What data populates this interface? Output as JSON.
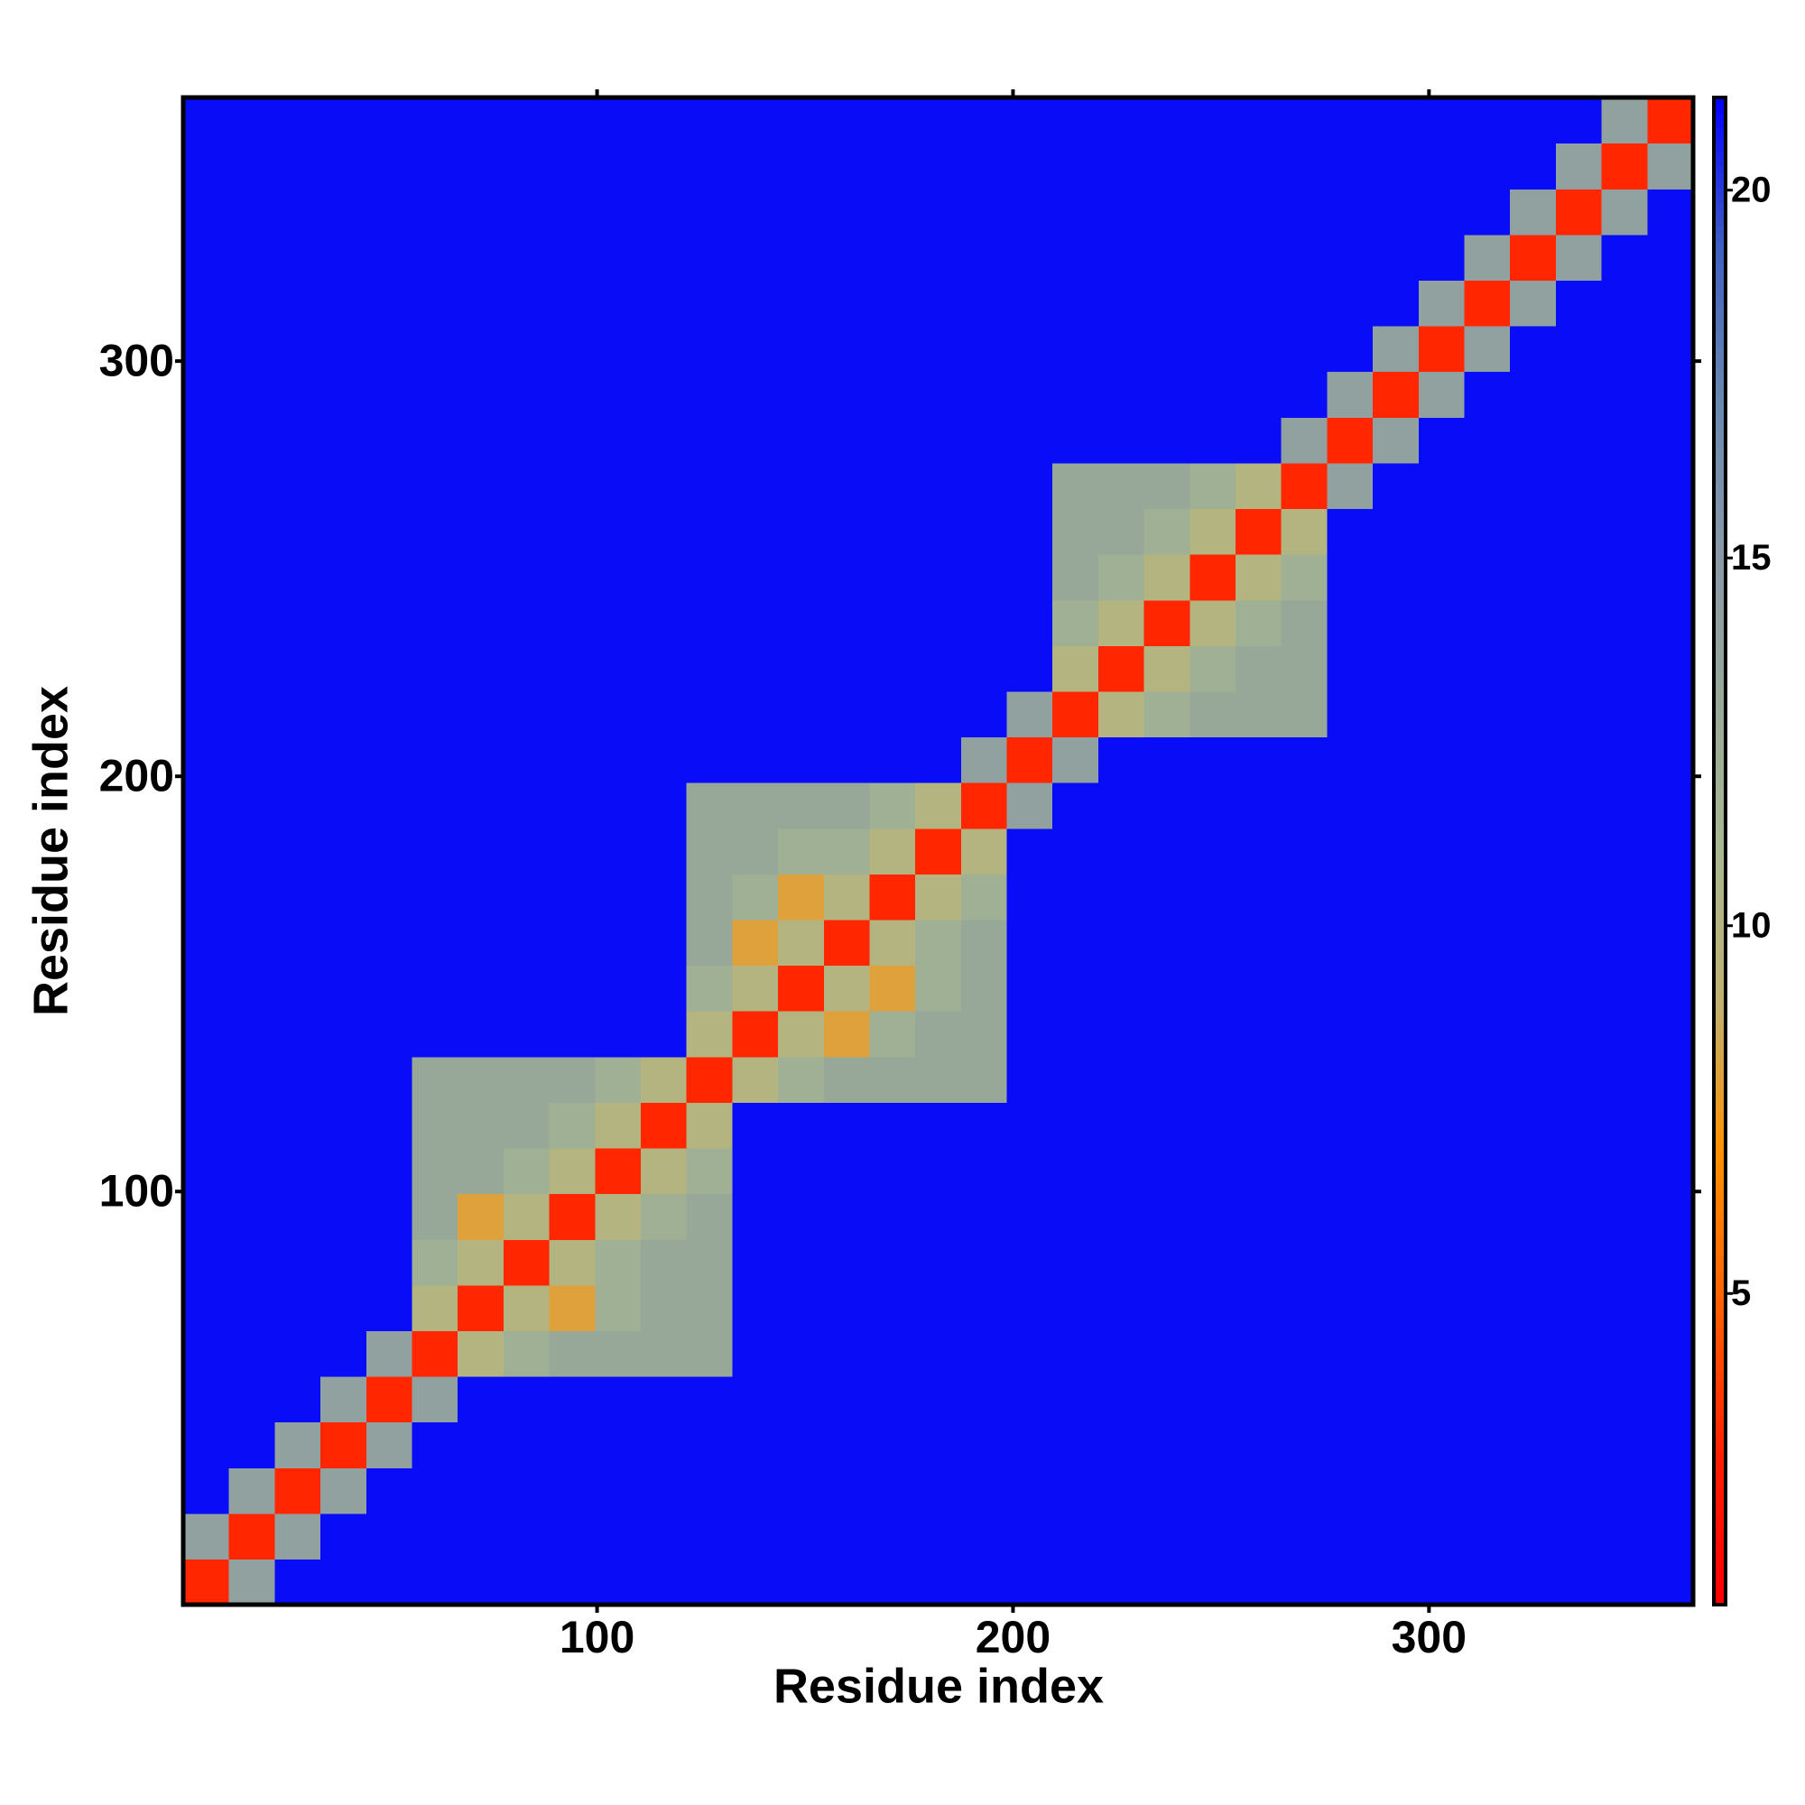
{
  "chart_data": {
    "type": "heatmap",
    "xlabel": "Residue index",
    "ylabel": "Residue index",
    "x": [
      0.5,
      11.5,
      22.5,
      33.5,
      44.5,
      55.5,
      66.5,
      77.5,
      88.5,
      99.5,
      110.5,
      121.5,
      132.5,
      143.5,
      154.5,
      165.5,
      176.5,
      187.5,
      198.5,
      209.5,
      220.5,
      231.5,
      242.5,
      253.5,
      264.5,
      275.5,
      286.5,
      297.5,
      308.5,
      319.5,
      330.5,
      341.5,
      352.5,
      363.5
    ],
    "y": [
      0.5,
      11.5,
      22.5,
      33.5,
      44.5,
      55.5,
      66.5,
      77.5,
      88.5,
      99.5,
      110.5,
      121.5,
      132.5,
      143.5,
      154.5,
      165.5,
      176.5,
      187.5,
      198.5,
      209.5,
      220.5,
      231.5,
      242.5,
      253.5,
      264.5,
      275.5,
      286.5,
      297.5,
      308.5,
      319.5,
      330.5,
      341.5,
      352.5,
      363.5
    ],
    "z": [
      [
        3,
        14,
        21,
        21,
        21,
        21,
        21,
        21,
        21,
        21,
        21,
        21,
        21,
        21,
        21,
        21,
        21,
        21,
        21,
        21,
        21,
        21,
        21,
        21,
        21,
        21,
        21,
        21,
        21,
        21,
        21,
        21,
        21
      ],
      [
        14,
        3,
        14,
        21,
        21,
        21,
        21,
        21,
        21,
        21,
        21,
        21,
        21,
        21,
        21,
        21,
        21,
        21,
        21,
        21,
        21,
        21,
        21,
        21,
        21,
        21,
        21,
        21,
        21,
        21,
        21,
        21,
        21
      ],
      [
        21,
        14,
        3,
        14,
        21,
        21,
        21,
        21,
        21,
        21,
        21,
        21,
        21,
        21,
        21,
        21,
        21,
        21,
        21,
        21,
        21,
        21,
        21,
        21,
        21,
        21,
        21,
        21,
        21,
        21,
        21,
        21,
        21
      ],
      [
        21,
        21,
        14,
        3,
        14,
        21,
        21,
        21,
        21,
        21,
        21,
        21,
        21,
        21,
        21,
        21,
        21,
        21,
        21,
        21,
        21,
        21,
        21,
        21,
        21,
        21,
        21,
        21,
        21,
        21,
        21,
        21,
        21
      ],
      [
        21,
        21,
        21,
        14,
        3,
        14,
        21,
        21,
        21,
        21,
        21,
        21,
        21,
        21,
        21,
        21,
        21,
        21,
        21,
        21,
        21,
        21,
        21,
        21,
        21,
        21,
        21,
        21,
        21,
        21,
        21,
        21,
        21
      ],
      [
        21,
        21,
        21,
        21,
        14,
        3,
        10,
        12,
        13,
        13,
        13,
        13,
        21,
        21,
        21,
        21,
        21,
        21,
        21,
        21,
        21,
        21,
        21,
        21,
        21,
        21,
        21,
        21,
        21,
        21,
        21,
        21,
        21
      ],
      [
        21,
        21,
        21,
        21,
        21,
        10,
        3,
        10,
        8,
        12,
        13,
        13,
        21,
        21,
        21,
        21,
        21,
        21,
        21,
        21,
        21,
        21,
        21,
        21,
        21,
        21,
        21,
        21,
        21,
        21,
        21,
        21,
        21
      ],
      [
        21,
        21,
        21,
        21,
        21,
        12,
        10,
        3,
        10,
        12,
        13,
        13,
        21,
        21,
        21,
        21,
        21,
        21,
        21,
        21,
        21,
        21,
        21,
        21,
        21,
        21,
        21,
        21,
        21,
        21,
        21,
        21,
        21
      ],
      [
        21,
        21,
        21,
        21,
        21,
        13,
        8,
        10,
        3,
        10,
        12,
        13,
        21,
        21,
        21,
        21,
        21,
        21,
        21,
        21,
        21,
        21,
        21,
        21,
        21,
        21,
        21,
        21,
        21,
        21,
        21,
        21,
        21
      ],
      [
        21,
        21,
        21,
        21,
        21,
        13,
        13,
        12,
        10,
        3,
        10,
        12,
        21,
        21,
        21,
        21,
        21,
        21,
        21,
        21,
        21,
        21,
        21,
        21,
        21,
        21,
        21,
        21,
        21,
        21,
        21,
        21,
        21
      ],
      [
        21,
        21,
        21,
        21,
        21,
        13,
        13,
        13,
        12,
        10,
        3,
        10,
        21,
        21,
        21,
        21,
        21,
        21,
        21,
        21,
        21,
        21,
        21,
        21,
        21,
        21,
        21,
        21,
        21,
        21,
        21,
        21,
        21
      ],
      [
        21,
        21,
        21,
        21,
        21,
        13,
        13,
        13,
        13,
        12,
        10,
        3,
        10,
        12,
        13,
        13,
        13,
        13,
        21,
        21,
        21,
        21,
        21,
        21,
        21,
        21,
        21,
        21,
        21,
        21,
        21,
        21,
        21
      ],
      [
        21,
        21,
        21,
        21,
        21,
        21,
        21,
        21,
        21,
        21,
        21,
        10,
        3,
        10,
        8,
        12,
        13,
        13,
        21,
        21,
        21,
        21,
        21,
        21,
        21,
        21,
        21,
        21,
        21,
        21,
        21,
        21,
        21
      ],
      [
        21,
        21,
        21,
        21,
        21,
        21,
        21,
        21,
        21,
        21,
        21,
        12,
        10,
        3,
        10,
        8,
        12,
        13,
        21,
        21,
        21,
        21,
        21,
        21,
        21,
        21,
        21,
        21,
        21,
        21,
        21,
        21,
        21
      ],
      [
        21,
        21,
        21,
        21,
        21,
        21,
        21,
        21,
        21,
        21,
        21,
        13,
        8,
        10,
        3,
        10,
        12,
        13,
        21,
        21,
        21,
        21,
        21,
        21,
        21,
        21,
        21,
        21,
        21,
        21,
        21,
        21,
        21
      ],
      [
        21,
        21,
        21,
        21,
        21,
        21,
        21,
        21,
        21,
        21,
        21,
        13,
        12,
        8,
        10,
        3,
        10,
        12,
        21,
        21,
        21,
        21,
        21,
        21,
        21,
        21,
        21,
        21,
        21,
        21,
        21,
        21,
        21
      ],
      [
        21,
        21,
        21,
        21,
        21,
        21,
        21,
        21,
        21,
        21,
        21,
        13,
        13,
        12,
        12,
        10,
        3,
        10,
        21,
        21,
        21,
        21,
        21,
        21,
        21,
        21,
        21,
        21,
        21,
        21,
        21,
        21,
        21
      ],
      [
        21,
        21,
        21,
        21,
        21,
        21,
        21,
        21,
        21,
        21,
        21,
        13,
        13,
        13,
        13,
        12,
        10,
        3,
        14,
        21,
        21,
        21,
        21,
        21,
        21,
        21,
        21,
        21,
        21,
        21,
        21,
        21,
        21
      ],
      [
        21,
        21,
        21,
        21,
        21,
        21,
        21,
        21,
        21,
        21,
        21,
        21,
        21,
        21,
        21,
        21,
        21,
        14,
        3,
        14,
        21,
        21,
        21,
        21,
        21,
        21,
        21,
        21,
        21,
        21,
        21,
        21,
        21
      ],
      [
        21,
        21,
        21,
        21,
        21,
        21,
        21,
        21,
        21,
        21,
        21,
        21,
        21,
        21,
        21,
        21,
        21,
        21,
        14,
        3,
        10,
        12,
        13,
        13,
        13,
        21,
        21,
        21,
        21,
        21,
        21,
        21,
        21
      ],
      [
        21,
        21,
        21,
        21,
        21,
        21,
        21,
        21,
        21,
        21,
        21,
        21,
        21,
        21,
        21,
        21,
        21,
        21,
        21,
        10,
        3,
        10,
        12,
        13,
        13,
        21,
        21,
        21,
        21,
        21,
        21,
        21,
        21
      ],
      [
        21,
        21,
        21,
        21,
        21,
        21,
        21,
        21,
        21,
        21,
        21,
        21,
        21,
        21,
        21,
        21,
        21,
        21,
        21,
        12,
        10,
        3,
        10,
        12,
        13,
        21,
        21,
        21,
        21,
        21,
        21,
        21,
        21
      ],
      [
        21,
        21,
        21,
        21,
        21,
        21,
        21,
        21,
        21,
        21,
        21,
        21,
        21,
        21,
        21,
        21,
        21,
        21,
        21,
        13,
        12,
        10,
        3,
        10,
        12,
        21,
        21,
        21,
        21,
        21,
        21,
        21,
        21
      ],
      [
        21,
        21,
        21,
        21,
        21,
        21,
        21,
        21,
        21,
        21,
        21,
        21,
        21,
        21,
        21,
        21,
        21,
        21,
        21,
        13,
        13,
        12,
        10,
        3,
        10,
        21,
        21,
        21,
        21,
        21,
        21,
        21,
        21
      ],
      [
        21,
        21,
        21,
        21,
        21,
        21,
        21,
        21,
        21,
        21,
        21,
        21,
        21,
        21,
        21,
        21,
        21,
        21,
        21,
        13,
        13,
        13,
        12,
        10,
        3,
        14,
        21,
        21,
        21,
        21,
        21,
        21,
        21
      ],
      [
        21,
        21,
        21,
        21,
        21,
        21,
        21,
        21,
        21,
        21,
        21,
        21,
        21,
        21,
        21,
        21,
        21,
        21,
        21,
        21,
        21,
        21,
        21,
        21,
        14,
        3,
        14,
        21,
        21,
        21,
        21,
        21,
        21
      ],
      [
        21,
        21,
        21,
        21,
        21,
        21,
        21,
        21,
        21,
        21,
        21,
        21,
        21,
        21,
        21,
        21,
        21,
        21,
        21,
        21,
        21,
        21,
        21,
        21,
        21,
        14,
        3,
        14,
        21,
        21,
        21,
        21,
        21
      ],
      [
        21,
        21,
        21,
        21,
        21,
        21,
        21,
        21,
        21,
        21,
        21,
        21,
        21,
        21,
        21,
        21,
        21,
        21,
        21,
        21,
        21,
        21,
        21,
        21,
        21,
        21,
        14,
        3,
        14,
        21,
        21,
        21,
        21
      ],
      [
        21,
        21,
        21,
        21,
        21,
        21,
        21,
        21,
        21,
        21,
        21,
        21,
        21,
        21,
        21,
        21,
        21,
        21,
        21,
        21,
        21,
        21,
        21,
        21,
        21,
        21,
        21,
        14,
        3,
        14,
        21,
        21,
        21
      ],
      [
        21,
        21,
        21,
        21,
        21,
        21,
        21,
        21,
        21,
        21,
        21,
        21,
        21,
        21,
        21,
        21,
        21,
        21,
        21,
        21,
        21,
        21,
        21,
        21,
        21,
        21,
        21,
        21,
        14,
        3,
        14,
        21,
        21
      ],
      [
        21,
        21,
        21,
        21,
        21,
        21,
        21,
        21,
        21,
        21,
        21,
        21,
        21,
        21,
        21,
        21,
        21,
        21,
        21,
        21,
        21,
        21,
        21,
        21,
        21,
        21,
        21,
        21,
        21,
        14,
        3,
        14,
        21
      ],
      [
        21,
        21,
        21,
        21,
        21,
        21,
        21,
        21,
        21,
        21,
        21,
        21,
        21,
        21,
        21,
        21,
        21,
        21,
        21,
        21,
        21,
        21,
        21,
        21,
        21,
        21,
        21,
        21,
        21,
        21,
        14,
        3,
        14
      ],
      [
        21,
        21,
        21,
        21,
        21,
        21,
        21,
        21,
        21,
        21,
        21,
        21,
        21,
        21,
        21,
        21,
        21,
        21,
        21,
        21,
        21,
        21,
        21,
        21,
        21,
        21,
        21,
        21,
        21,
        21,
        21,
        14,
        3
      ]
    ],
    "xlim": [
      0.5,
      363.5
    ],
    "ylim": [
      0.5,
      363.5
    ],
    "xticks": [
      100,
      200,
      300
    ],
    "yticks": [
      100,
      200,
      300
    ],
    "zlim": [
      0.77,
      21.26
    ],
    "zticks": [
      5,
      10,
      15,
      20
    ],
    "colors": [
      "#ff0000",
      "#ff2000",
      "#ff6000",
      "#ff9000",
      "#c0b070",
      "#a8b890",
      "#98a898",
      "#8898a8",
      "#6888b0",
      "#4060c0",
      "#0000ff"
    ]
  }
}
